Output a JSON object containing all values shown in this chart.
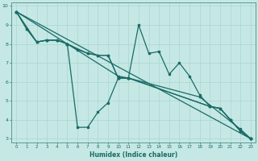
{
  "xlabel": "Humidex (Indice chaleur)",
  "bg_color": "#c5e8e5",
  "grid_color": "#b0d8d5",
  "line_color": "#1a6b65",
  "xlim": [
    -0.5,
    23.5
  ],
  "ylim": [
    2.8,
    10.2
  ],
  "yticks": [
    3,
    4,
    5,
    6,
    7,
    8,
    9,
    10
  ],
  "xticks": [
    0,
    1,
    2,
    3,
    4,
    5,
    6,
    7,
    8,
    9,
    10,
    11,
    12,
    13,
    14,
    15,
    16,
    17,
    18,
    19,
    20,
    21,
    22,
    23
  ],
  "line1_x": [
    0,
    1,
    2,
    3,
    4,
    5,
    6,
    7,
    8,
    9,
    10,
    11,
    12,
    13,
    14,
    15,
    16,
    17,
    18,
    19,
    20,
    21,
    22,
    23
  ],
  "line1_y": [
    9.7,
    8.8,
    8.1,
    8.2,
    8.2,
    8.0,
    7.7,
    7.5,
    7.4,
    7.4,
    6.2,
    6.2,
    9.0,
    7.5,
    7.6,
    6.4,
    7.0,
    6.3,
    5.3,
    4.7,
    4.6,
    4.0,
    3.4,
    3.0
  ],
  "line2_x": [
    0,
    1,
    2,
    3,
    4,
    5,
    6,
    7,
    8,
    9,
    10,
    11,
    19,
    20,
    21,
    22,
    23
  ],
  "line2_y": [
    9.7,
    8.8,
    8.1,
    8.2,
    8.2,
    8.0,
    3.6,
    3.6,
    4.4,
    4.9,
    6.2,
    6.2,
    4.7,
    4.6,
    4.0,
    3.4,
    3.0
  ],
  "line3_x": [
    0,
    2,
    3,
    4,
    5,
    7,
    8,
    9,
    10,
    11,
    19,
    20,
    21,
    22,
    23
  ],
  "line3_y": [
    9.7,
    8.1,
    8.2,
    8.2,
    8.0,
    7.5,
    7.4,
    7.4,
    6.2,
    6.2,
    4.7,
    4.6,
    4.0,
    3.4,
    3.0
  ],
  "line4_x": [
    0,
    5,
    10,
    11,
    18,
    22,
    23
  ],
  "line4_y": [
    9.7,
    8.0,
    6.3,
    6.2,
    5.2,
    3.5,
    3.0
  ],
  "line5_x": [
    0,
    23
  ],
  "line5_y": [
    9.7,
    3.0
  ]
}
